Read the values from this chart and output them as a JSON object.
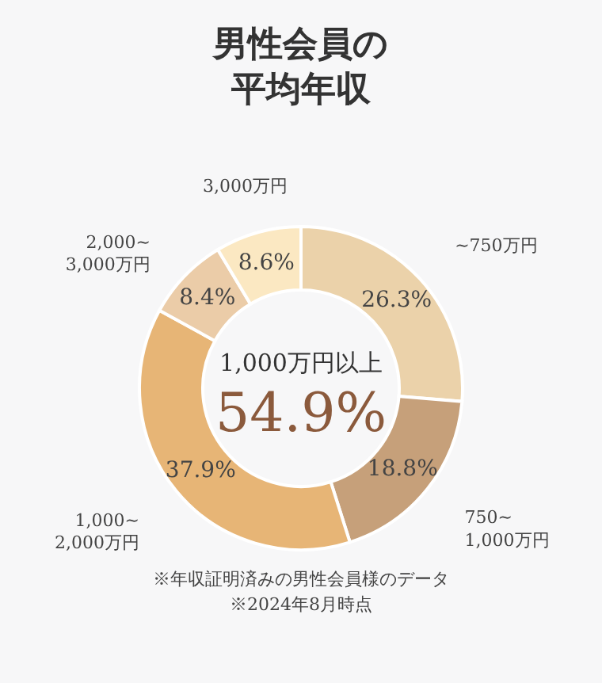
{
  "chart_data": {
    "type": "donut",
    "title": "男性会員の平均年収",
    "categories": [
      "~750万円",
      "750~\n1,000万円",
      "1,000~\n2,000万円",
      "2,000~\n3,000万円",
      "3,000万円"
    ],
    "values": [
      26.3,
      18.8,
      37.9,
      8.4,
      8.6
    ],
    "colors": [
      "#ebd2aa",
      "#c6a07a",
      "#e7b576",
      "#ebcca8",
      "#fbe8c2"
    ],
    "value_labels": [
      "26.3%",
      "18.8%",
      "37.9%",
      "8.4%",
      "8.6%"
    ],
    "annotations": [
      "1,000万円以上",
      "54.9%",
      "※年収証明済みの男性会員様のデータ",
      "※2024年8月時点"
    ]
  }
}
